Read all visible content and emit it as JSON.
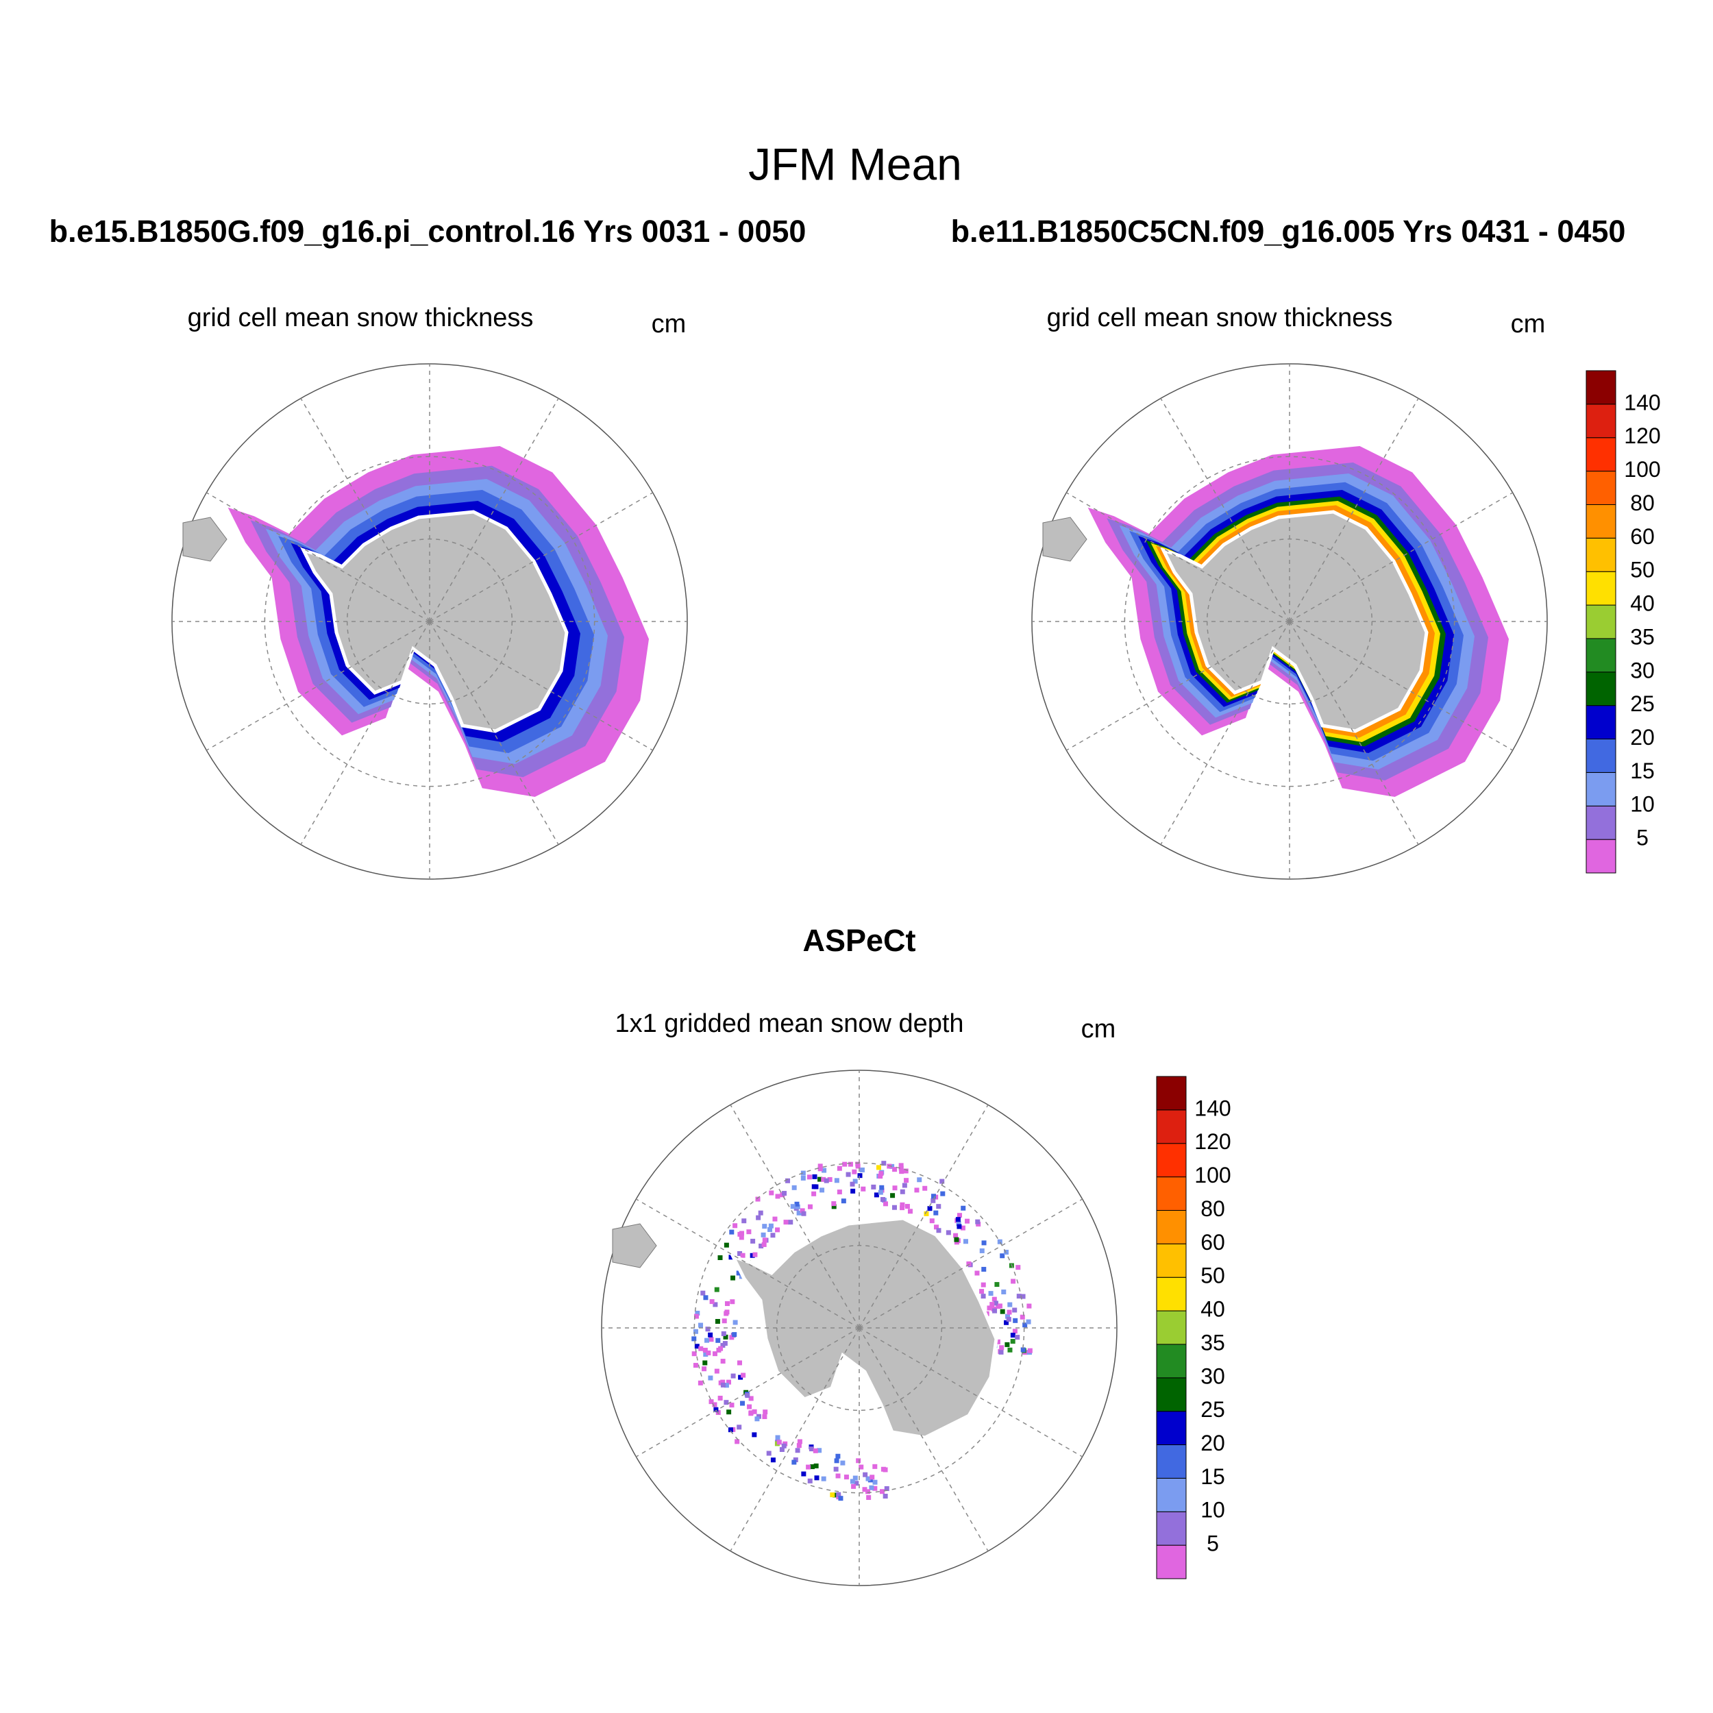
{
  "header": {
    "title": "JFM Mean"
  },
  "panels": [
    {
      "case": "b.e15.B1850G.f09_g16.pi_control.16  Yrs 0031 - 0050",
      "label": "grid cell mean snow thickness",
      "units": "cm"
    },
    {
      "case": "b.e11.B1850C5CN.f09_g16.005  Yrs 0431 - 0450",
      "label": "grid cell mean snow thickness",
      "units": "cm"
    },
    {
      "case": "ASPeCt",
      "label": "1x1 gridded mean snow depth",
      "units": "cm"
    }
  ],
  "colorbar": {
    "levels": [
      5,
      10,
      15,
      20,
      25,
      30,
      35,
      40,
      50,
      60,
      80,
      100,
      120,
      140
    ],
    "colors": [
      "#e066e0",
      "#9370db",
      "#7b9cf0",
      "#4169e1",
      "#0000cd",
      "#006400",
      "#228b22",
      "#9acd32",
      "#ffe000",
      "#ffc000",
      "#ff9000",
      "#ff6000",
      "#ff3000",
      "#dd2010",
      "#8b0000"
    ]
  }
}
